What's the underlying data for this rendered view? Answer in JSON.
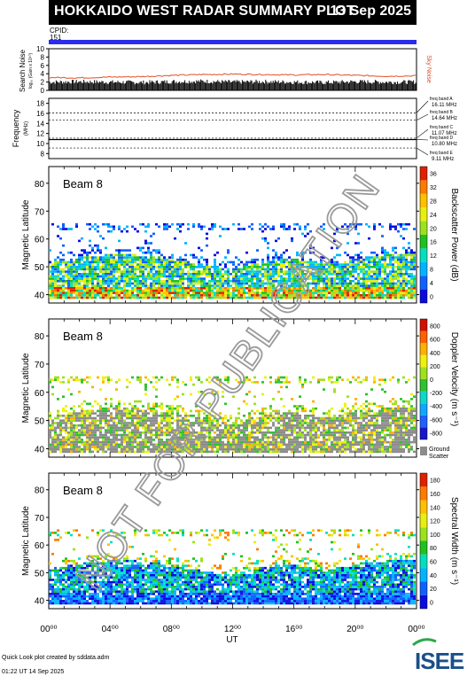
{
  "header": {
    "title": "HOKKAIDO WEST RADAR SUMMARY PLOT",
    "date": "13 Sep 2025"
  },
  "cpid": {
    "label": "CPID:",
    "value": "151"
  },
  "colors": {
    "cpid_bar": "#2b2bf0",
    "sky_noise": "#e0502a",
    "watermark": "#9a9a9a",
    "ground_scatter": "#8c8c8c"
  },
  "footer": {
    "credit": "Quick Look plot created by sddata.adm",
    "timestamp": "01:22 UT 14 Sep 2025",
    "logo_text": "ISEE"
  },
  "watermark": "NOT FOR PUBLICATION",
  "chart_data": [
    {
      "type": "line",
      "panel": "noise",
      "ylabel": "Search Noise",
      "ylabel_sub": "log₁₀ (Gain x 10¹⁰)",
      "right_label": "Sky Noise",
      "ylim": [
        0,
        10
      ],
      "yticks": [
        "0",
        "2",
        "4",
        "6",
        "8",
        "10"
      ],
      "x": [
        0,
        2,
        4,
        6,
        8,
        10,
        12,
        14,
        16,
        18,
        20,
        22,
        24
      ],
      "series": [
        {
          "name": "Sky Noise",
          "values": [
            3.1,
            3.0,
            3.2,
            3.3,
            3.6,
            3.8,
            3.9,
            3.8,
            3.7,
            3.8,
            3.6,
            3.4,
            3.5
          ]
        },
        {
          "name": "Search Noise",
          "values": [
            1.5,
            1.6,
            1.5,
            1.4,
            1.6,
            1.7,
            1.5,
            1.6,
            1.5,
            1.4,
            1.6,
            1.5,
            1.5
          ]
        }
      ]
    },
    {
      "type": "line",
      "panel": "frequency",
      "ylabel": "Frequency",
      "ylabel_sub": "(MHz)",
      "ylim": [
        7,
        19
      ],
      "yticks": [
        "8",
        "10",
        "12",
        "14",
        "16",
        "18"
      ],
      "bands": [
        {
          "label": "freq band A",
          "value": "16.11 MHz",
          "freq": 16.11
        },
        {
          "label": "freq band B",
          "value": "14.64 MHz",
          "freq": 14.64
        },
        {
          "label": "freq band C",
          "value": "11.07 MHz",
          "freq": 11.07
        },
        {
          "label": "freq band D",
          "value": "10.80 MHz",
          "freq": 10.8
        },
        {
          "label": "freq band E",
          "value": "9.11 MHz",
          "freq": 9.11
        }
      ],
      "active_freq": 10.8
    },
    {
      "type": "heatmap",
      "panel": "power",
      "beam_label": "Beam  8",
      "ylabel": "Magnetic Latitude",
      "ylim": [
        37,
        86
      ],
      "yticks": [
        "40",
        "50",
        "60",
        "70",
        "80"
      ],
      "colorbar_label": "Backscatter Power (dB)",
      "colorbar_ticks": [
        "0",
        "4",
        "8",
        "12",
        "16",
        "20",
        "24",
        "28",
        "32",
        "36"
      ],
      "colormap": [
        "#0b0be0",
        "#1060ff",
        "#00b4ff",
        "#00e0c0",
        "#20c020",
        "#9be21c",
        "#e8ee10",
        "#ffc000",
        "#ff7a00",
        "#e02000"
      ]
    },
    {
      "type": "heatmap",
      "panel": "velocity",
      "beam_label": "Beam  8",
      "ylabel": "Magnetic Latitude",
      "ylim": [
        37,
        86
      ],
      "yticks": [
        "40",
        "50",
        "60",
        "70",
        "80"
      ],
      "colorbar_label": "Doppler Velocity (m s⁻¹)",
      "colorbar_ticks": [
        "800",
        "600",
        "400",
        "200",
        "0",
        "-200",
        "-400",
        "-600",
        "-800"
      ],
      "colormap": [
        "#1818c8",
        "#2060ff",
        "#10a8ff",
        "#10d8c8",
        "#30c030",
        "#a0e020",
        "#f0f010",
        "#ffb000",
        "#ff6000",
        "#d01000"
      ],
      "ground_scatter_label": "Ground Scatter"
    },
    {
      "type": "heatmap",
      "panel": "width",
      "beam_label": "Beam  8",
      "ylabel": "Magnetic Latitude",
      "ylim": [
        37,
        86
      ],
      "yticks": [
        "40",
        "50",
        "60",
        "70",
        "80"
      ],
      "colorbar_label": "Spectral Width (m s⁻¹)",
      "colorbar_ticks": [
        "0",
        "20",
        "40",
        "60",
        "80",
        "100",
        "120",
        "140",
        "160",
        "180"
      ],
      "colormap": [
        "#0b0be0",
        "#1060ff",
        "#00b4ff",
        "#00e0c0",
        "#20c020",
        "#9be21c",
        "#e8ee10",
        "#ffc000",
        "#ff7a00",
        "#e02000"
      ]
    }
  ],
  "time_axis": {
    "label": "UT",
    "ticks": [
      "00⁰⁰",
      "04⁰⁰",
      "08⁰⁰",
      "12⁰⁰",
      "16⁰⁰",
      "20⁰⁰",
      "00⁰⁰"
    ]
  }
}
